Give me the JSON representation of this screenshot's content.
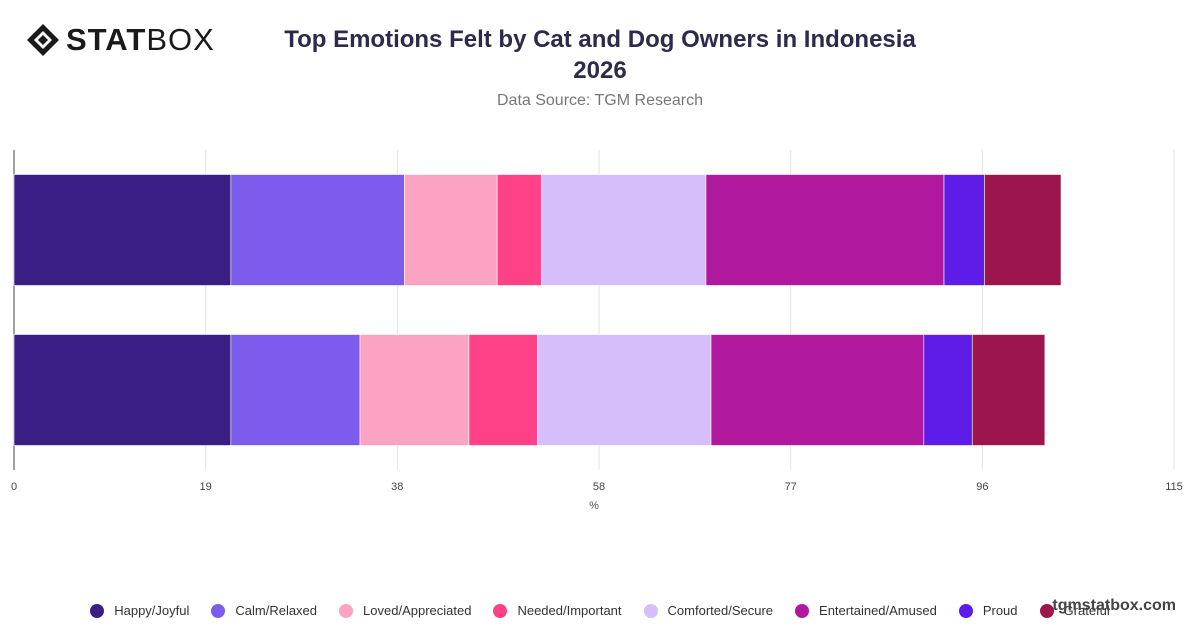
{
  "brand": {
    "logo_bold": "STAT",
    "logo_light": "BOX"
  },
  "watermark": "tgmstatbox.com",
  "chart_data": {
    "type": "bar",
    "orientation": "horizontal",
    "stacked": true,
    "title": "Top Emotions Felt by Cat and Dog Owners in Indonesia",
    "title_line2": "2026",
    "subtitle": "Data Source: TGM Research",
    "xlabel": "%",
    "ylabel": "",
    "xlim": [
      0,
      115
    ],
    "xticks": [
      "0",
      "19",
      "38",
      "58",
      "77",
      "96",
      "115"
    ],
    "grid": true,
    "legend_position": "bottom",
    "categories": [
      "",
      ""
    ],
    "series": [
      {
        "name": "Happy/Joyful",
        "color": "#3a1e86",
        "values": [
          21.5,
          21.5
        ]
      },
      {
        "name": "Calm/Relaxed",
        "color": "#7b5ced",
        "values": [
          17.2,
          12.8
        ]
      },
      {
        "name": "Loved/Appreciated",
        "color": "#fca3c3",
        "values": [
          9.2,
          10.8
        ]
      },
      {
        "name": "Needed/Important",
        "color": "#ff4287",
        "values": [
          4.4,
          6.8
        ]
      },
      {
        "name": "Comforted/Secure",
        "color": "#d5befa",
        "values": [
          16.3,
          17.2
        ]
      },
      {
        "name": "Entertained/Amused",
        "color": "#b0199e",
        "values": [
          23.6,
          21.1
        ]
      },
      {
        "name": "Proud",
        "color": "#5e1ce8",
        "values": [
          4.0,
          4.8
        ]
      },
      {
        "name": "Grateful",
        "color": "#9c164b",
        "values": [
          7.6,
          7.2
        ]
      }
    ]
  }
}
